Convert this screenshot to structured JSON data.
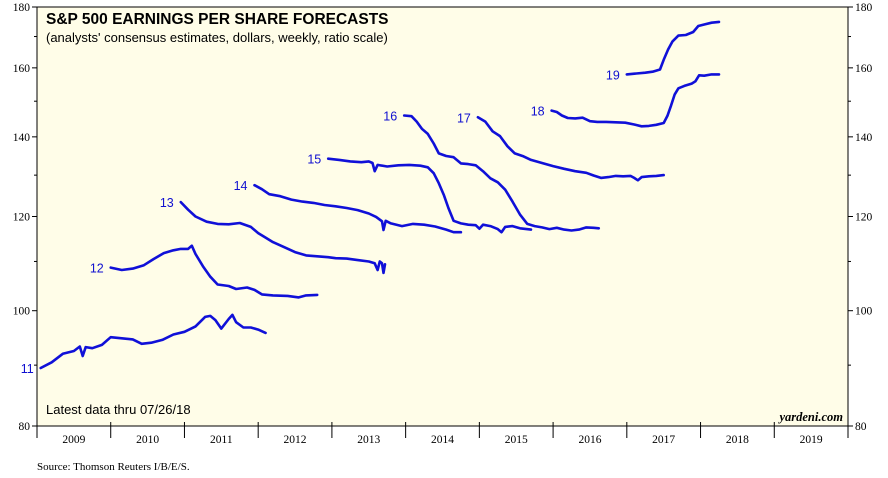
{
  "chart_data": {
    "type": "line",
    "title": "S&P 500 EARNINGS PER SHARE FORECASTS",
    "subtitle": "(analysts' consensus estimates, dollars, weekly, ratio scale)",
    "y_scale": "log",
    "ylim": [
      80,
      180
    ],
    "y_ticks": [
      80,
      100,
      120,
      140,
      160,
      180
    ],
    "x_range": [
      2009,
      2020
    ],
    "x_tick_labels": [
      "2009",
      "2010",
      "2011",
      "2012",
      "2013",
      "2014",
      "2015",
      "2016",
      "2017",
      "2018",
      "2019"
    ],
    "grid": false,
    "line_color": "#1010d8",
    "background_color": "#fffde8",
    "series": [
      {
        "name": "11",
        "points": [
          [
            2009.05,
            89.5
          ],
          [
            2009.2,
            90.5
          ],
          [
            2009.35,
            92.0
          ],
          [
            2009.5,
            92.5
          ],
          [
            2009.58,
            93.3
          ],
          [
            2009.62,
            91.6
          ],
          [
            2009.66,
            93.2
          ],
          [
            2009.75,
            93.0
          ],
          [
            2009.88,
            93.6
          ],
          [
            2010.0,
            95.0
          ],
          [
            2010.15,
            94.8
          ],
          [
            2010.3,
            94.6
          ],
          [
            2010.42,
            93.8
          ],
          [
            2010.55,
            94.0
          ],
          [
            2010.7,
            94.5
          ],
          [
            2010.85,
            95.5
          ],
          [
            2011.0,
            96.0
          ],
          [
            2011.15,
            97.0
          ],
          [
            2011.28,
            98.8
          ],
          [
            2011.35,
            99.0
          ],
          [
            2011.42,
            98.2
          ],
          [
            2011.5,
            96.6
          ],
          [
            2011.6,
            98.4
          ],
          [
            2011.65,
            99.2
          ],
          [
            2011.7,
            97.8
          ],
          [
            2011.8,
            96.8
          ],
          [
            2011.9,
            96.8
          ],
          [
            2012.0,
            96.4
          ],
          [
            2012.1,
            95.8
          ]
        ]
      },
      {
        "name": "12",
        "points": [
          [
            2010.0,
            108.7
          ],
          [
            2010.15,
            108.2
          ],
          [
            2010.3,
            108.5
          ],
          [
            2010.45,
            109.2
          ],
          [
            2010.58,
            110.5
          ],
          [
            2010.72,
            111.8
          ],
          [
            2010.85,
            112.4
          ],
          [
            2010.95,
            112.7
          ],
          [
            2011.05,
            112.7
          ],
          [
            2011.1,
            113.4
          ],
          [
            2011.15,
            111.6
          ],
          [
            2011.25,
            109.0
          ],
          [
            2011.35,
            106.8
          ],
          [
            2011.45,
            105.2
          ],
          [
            2011.6,
            104.9
          ],
          [
            2011.7,
            104.3
          ],
          [
            2011.85,
            104.6
          ],
          [
            2011.95,
            104.1
          ],
          [
            2012.05,
            103.2
          ],
          [
            2012.2,
            103.0
          ],
          [
            2012.4,
            102.9
          ],
          [
            2012.55,
            102.6
          ],
          [
            2012.65,
            103.0
          ],
          [
            2012.8,
            103.1
          ]
        ]
      },
      {
        "name": "13",
        "points": [
          [
            2010.95,
            123.4
          ],
          [
            2011.05,
            121.6
          ],
          [
            2011.15,
            120.0
          ],
          [
            2011.3,
            118.8
          ],
          [
            2011.45,
            118.3
          ],
          [
            2011.6,
            118.2
          ],
          [
            2011.75,
            118.5
          ],
          [
            2011.9,
            117.6
          ],
          [
            2012.0,
            116.2
          ],
          [
            2012.1,
            115.2
          ],
          [
            2012.2,
            114.2
          ],
          [
            2012.35,
            113.1
          ],
          [
            2012.5,
            112.0
          ],
          [
            2012.65,
            111.3
          ],
          [
            2012.8,
            111.1
          ],
          [
            2012.95,
            110.9
          ],
          [
            2013.05,
            110.7
          ],
          [
            2013.2,
            110.6
          ],
          [
            2013.35,
            110.3
          ],
          [
            2013.5,
            110.0
          ],
          [
            2013.58,
            109.6
          ],
          [
            2013.62,
            108.2
          ],
          [
            2013.65,
            110.0
          ],
          [
            2013.68,
            109.6
          ],
          [
            2013.7,
            107.6
          ],
          [
            2013.72,
            109.4
          ]
        ]
      },
      {
        "name": "14",
        "points": [
          [
            2011.95,
            127.5
          ],
          [
            2012.05,
            126.5
          ],
          [
            2012.15,
            125.3
          ],
          [
            2012.3,
            124.8
          ],
          [
            2012.45,
            124.0
          ],
          [
            2012.6,
            123.5
          ],
          [
            2012.75,
            123.2
          ],
          [
            2012.9,
            122.7
          ],
          [
            2013.05,
            122.4
          ],
          [
            2013.2,
            122.0
          ],
          [
            2013.35,
            121.5
          ],
          [
            2013.5,
            120.7
          ],
          [
            2013.6,
            119.9
          ],
          [
            2013.68,
            118.9
          ],
          [
            2013.7,
            116.9
          ],
          [
            2013.73,
            119.0
          ],
          [
            2013.8,
            118.4
          ],
          [
            2013.95,
            117.8
          ],
          [
            2014.1,
            118.3
          ],
          [
            2014.25,
            118.1
          ],
          [
            2014.4,
            117.7
          ],
          [
            2014.55,
            117.0
          ],
          [
            2014.65,
            116.4
          ],
          [
            2014.75,
            116.4
          ]
        ]
      },
      {
        "name": "15",
        "points": [
          [
            2012.95,
            134.2
          ],
          [
            2013.1,
            133.9
          ],
          [
            2013.25,
            133.5
          ],
          [
            2013.4,
            133.3
          ],
          [
            2013.5,
            133.5
          ],
          [
            2013.55,
            133.1
          ],
          [
            2013.58,
            131.0
          ],
          [
            2013.62,
            132.6
          ],
          [
            2013.75,
            132.2
          ],
          [
            2013.9,
            132.5
          ],
          [
            2014.05,
            132.6
          ],
          [
            2014.2,
            132.4
          ],
          [
            2014.3,
            132.0
          ],
          [
            2014.38,
            130.5
          ],
          [
            2014.45,
            128.0
          ],
          [
            2014.52,
            125.0
          ],
          [
            2014.58,
            122.0
          ],
          [
            2014.65,
            119.0
          ],
          [
            2014.75,
            118.4
          ],
          [
            2014.85,
            118.1
          ],
          [
            2014.95,
            118.0
          ],
          [
            2015.0,
            117.2
          ],
          [
            2015.05,
            118.1
          ],
          [
            2015.15,
            117.8
          ],
          [
            2015.25,
            117.1
          ],
          [
            2015.3,
            116.4
          ],
          [
            2015.35,
            117.6
          ],
          [
            2015.45,
            117.8
          ],
          [
            2015.55,
            117.3
          ],
          [
            2015.7,
            117.0
          ]
        ]
      },
      {
        "name": "16",
        "points": [
          [
            2013.98,
            145.9
          ],
          [
            2014.08,
            145.7
          ],
          [
            2014.15,
            144.2
          ],
          [
            2014.22,
            142.2
          ],
          [
            2014.3,
            140.8
          ],
          [
            2014.38,
            138.2
          ],
          [
            2014.45,
            135.6
          ],
          [
            2014.55,
            134.9
          ],
          [
            2014.65,
            134.6
          ],
          [
            2014.75,
            133.0
          ],
          [
            2014.85,
            132.8
          ],
          [
            2014.95,
            132.5
          ],
          [
            2015.05,
            131.0
          ],
          [
            2015.15,
            129.2
          ],
          [
            2015.25,
            128.2
          ],
          [
            2015.35,
            126.4
          ],
          [
            2015.45,
            123.5
          ],
          [
            2015.55,
            120.5
          ],
          [
            2015.65,
            118.3
          ],
          [
            2015.75,
            117.8
          ],
          [
            2015.85,
            117.5
          ],
          [
            2015.95,
            117.1
          ],
          [
            2016.05,
            117.4
          ],
          [
            2016.15,
            117.0
          ],
          [
            2016.25,
            116.8
          ],
          [
            2016.35,
            117.0
          ],
          [
            2016.45,
            117.5
          ],
          [
            2016.55,
            117.4
          ],
          [
            2016.62,
            117.3
          ]
        ]
      },
      {
        "name": "17",
        "points": [
          [
            2014.98,
            145.4
          ],
          [
            2015.08,
            144.2
          ],
          [
            2015.18,
            141.5
          ],
          [
            2015.28,
            140.2
          ],
          [
            2015.38,
            137.5
          ],
          [
            2015.48,
            135.6
          ],
          [
            2015.6,
            134.8
          ],
          [
            2015.7,
            133.9
          ],
          [
            2015.85,
            133.1
          ],
          [
            2016.0,
            132.3
          ],
          [
            2016.15,
            131.6
          ],
          [
            2016.3,
            131.0
          ],
          [
            2016.45,
            130.6
          ],
          [
            2016.55,
            129.9
          ],
          [
            2016.65,
            129.3
          ],
          [
            2016.75,
            129.5
          ],
          [
            2016.85,
            129.8
          ],
          [
            2016.95,
            129.7
          ],
          [
            2017.05,
            129.8
          ],
          [
            2017.1,
            129.3
          ],
          [
            2017.15,
            128.7
          ],
          [
            2017.2,
            129.5
          ],
          [
            2017.3,
            129.7
          ],
          [
            2017.4,
            129.8
          ],
          [
            2017.5,
            130.0
          ]
        ]
      },
      {
        "name": "18",
        "points": [
          [
            2015.98,
            147.3
          ],
          [
            2016.05,
            146.9
          ],
          [
            2016.12,
            145.9
          ],
          [
            2016.2,
            145.2
          ],
          [
            2016.3,
            145.1
          ],
          [
            2016.4,
            145.3
          ],
          [
            2016.5,
            144.3
          ],
          [
            2016.6,
            144.1
          ],
          [
            2016.72,
            144.1
          ],
          [
            2016.85,
            144.0
          ],
          [
            2016.98,
            143.9
          ],
          [
            2017.1,
            143.4
          ],
          [
            2017.2,
            142.9
          ],
          [
            2017.3,
            143.0
          ],
          [
            2017.4,
            143.3
          ],
          [
            2017.5,
            143.8
          ],
          [
            2017.55,
            145.8
          ],
          [
            2017.6,
            148.8
          ],
          [
            2017.65,
            152.0
          ],
          [
            2017.7,
            153.8
          ],
          [
            2017.78,
            154.5
          ],
          [
            2017.88,
            155.2
          ],
          [
            2017.93,
            155.9
          ],
          [
            2017.98,
            157.7
          ],
          [
            2018.05,
            157.6
          ],
          [
            2018.15,
            158.0
          ],
          [
            2018.25,
            158.0
          ]
        ]
      },
      {
        "name": "19",
        "points": [
          [
            2017.0,
            158.0
          ],
          [
            2017.1,
            158.2
          ],
          [
            2017.25,
            158.5
          ],
          [
            2017.35,
            158.8
          ],
          [
            2017.45,
            159.5
          ],
          [
            2017.5,
            162.5
          ],
          [
            2017.56,
            165.8
          ],
          [
            2017.62,
            168.4
          ],
          [
            2017.7,
            170.3
          ],
          [
            2017.8,
            170.5
          ],
          [
            2017.9,
            171.5
          ],
          [
            2017.97,
            173.5
          ],
          [
            2018.05,
            174.0
          ],
          [
            2018.15,
            174.6
          ],
          [
            2018.25,
            174.9
          ]
        ]
      }
    ],
    "annotations": {
      "note": "Latest data thru 07/26/18",
      "credit": "yardeni.com",
      "source": "Source: Thomson Reuters I/B/E/S."
    }
  }
}
